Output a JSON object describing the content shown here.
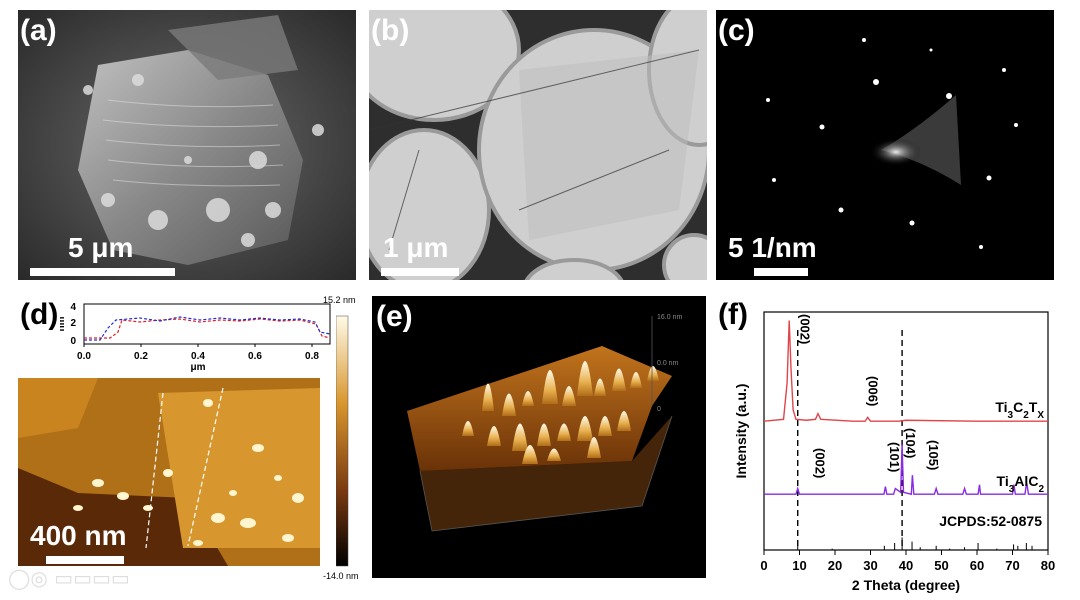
{
  "panels": {
    "a": {
      "label": "(a)",
      "scalebar": "5 μm"
    },
    "b": {
      "label": "(b)",
      "scalebar": "1 μm"
    },
    "c": {
      "label": "(c)",
      "scalebar": "5 1/nm"
    },
    "d": {
      "label": "(d)",
      "scalebar": "400 nm",
      "colorbar_max": "15.2 nm",
      "colorbar_min": "-14.0 nm",
      "profile_ylabel": "nm",
      "profile_xlabel": "μm",
      "profile_xticks": [
        "0.0",
        "0.2",
        "0.4",
        "0.6",
        "0.8"
      ],
      "profile_yticks": [
        "0",
        "2",
        "4"
      ]
    },
    "e": {
      "label": "(e)",
      "zmax": "16.0 nm",
      "zmid": "0.0 nm",
      "zmin": "0"
    },
    "f": {
      "label": "(f)"
    }
  },
  "chart_data": {
    "type": "line",
    "xlabel": "2 Theta (degree)",
    "ylabel": "Intensity (a.u.)",
    "xlim": [
      0,
      80
    ],
    "xticks": [
      "0",
      "10",
      "20",
      "30",
      "40",
      "50",
      "60",
      "70",
      "80"
    ],
    "series": [
      {
        "name": "Ti3C2TX",
        "name_main": "Ti",
        "name_parts": [
          [
            "Ti",
            ""
          ],
          [
            "3",
            "sub"
          ],
          [
            "C",
            ""
          ],
          [
            "2",
            "sub"
          ],
          [
            "T",
            ""
          ],
          [
            "X",
            "sub"
          ]
        ],
        "color": "#e0454a",
        "x": [
          0,
          5.5,
          6.5,
          7.1,
          7.6,
          8.2,
          9.0,
          12,
          14.5,
          15.2,
          16,
          25,
          28.5,
          29.2,
          30,
          38,
          40,
          60,
          80
        ],
        "y": [
          0.02,
          0.03,
          0.22,
          0.55,
          0.3,
          0.08,
          0.03,
          0.025,
          0.03,
          0.06,
          0.03,
          0.02,
          0.02,
          0.04,
          0.02,
          0.02,
          0.025,
          0.02,
          0.02
        ],
        "annotations": [
          "(002)",
          "(006)"
        ]
      },
      {
        "name": "Ti3AlC2",
        "name_parts": [
          [
            "Ti",
            ""
          ],
          [
            "3",
            "sub"
          ],
          [
            "AlC",
            ""
          ],
          [
            "2",
            "sub"
          ]
        ],
        "color": "#8a2be2",
        "x": [
          0,
          9.0,
          9.5,
          10,
          20,
          33.8,
          34.2,
          34.6,
          36.5,
          37,
          38.5,
          38.9,
          39.3,
          41.5,
          41.8,
          42.2,
          48,
          48.5,
          49,
          56,
          56.5,
          57,
          60.3,
          60.7,
          61,
          70,
          70.4,
          70.8,
          73.5,
          74,
          74.5,
          80
        ],
        "y": [
          0.02,
          0.02,
          0.05,
          0.02,
          0.02,
          0.02,
          0.06,
          0.02,
          0.02,
          0.05,
          0.03,
          0.28,
          0.03,
          0.02,
          0.12,
          0.02,
          0.02,
          0.05,
          0.02,
          0.02,
          0.05,
          0.02,
          0.02,
          0.07,
          0.02,
          0.02,
          0.07,
          0.02,
          0.02,
          0.08,
          0.02,
          0.02
        ],
        "annotations": [
          "(002)",
          "(101)",
          "(104)",
          "(105)"
        ]
      }
    ],
    "reference": {
      "label": "JCPDS:52-0875",
      "x": [
        9.5,
        19.2,
        33.9,
        36.8,
        38.9,
        41.7,
        44.0,
        48.5,
        52.3,
        56.5,
        60.3,
        65.6,
        70.3,
        71.5,
        73.9,
        75.5
      ],
      "h": [
        0.3,
        0.1,
        0.3,
        0.5,
        0.9,
        0.6,
        0.2,
        0.3,
        0.1,
        0.2,
        0.5,
        0.1,
        0.4,
        0.3,
        0.5,
        0.3
      ]
    },
    "dashed_lines_x": [
      9.5,
      38.9
    ]
  }
}
